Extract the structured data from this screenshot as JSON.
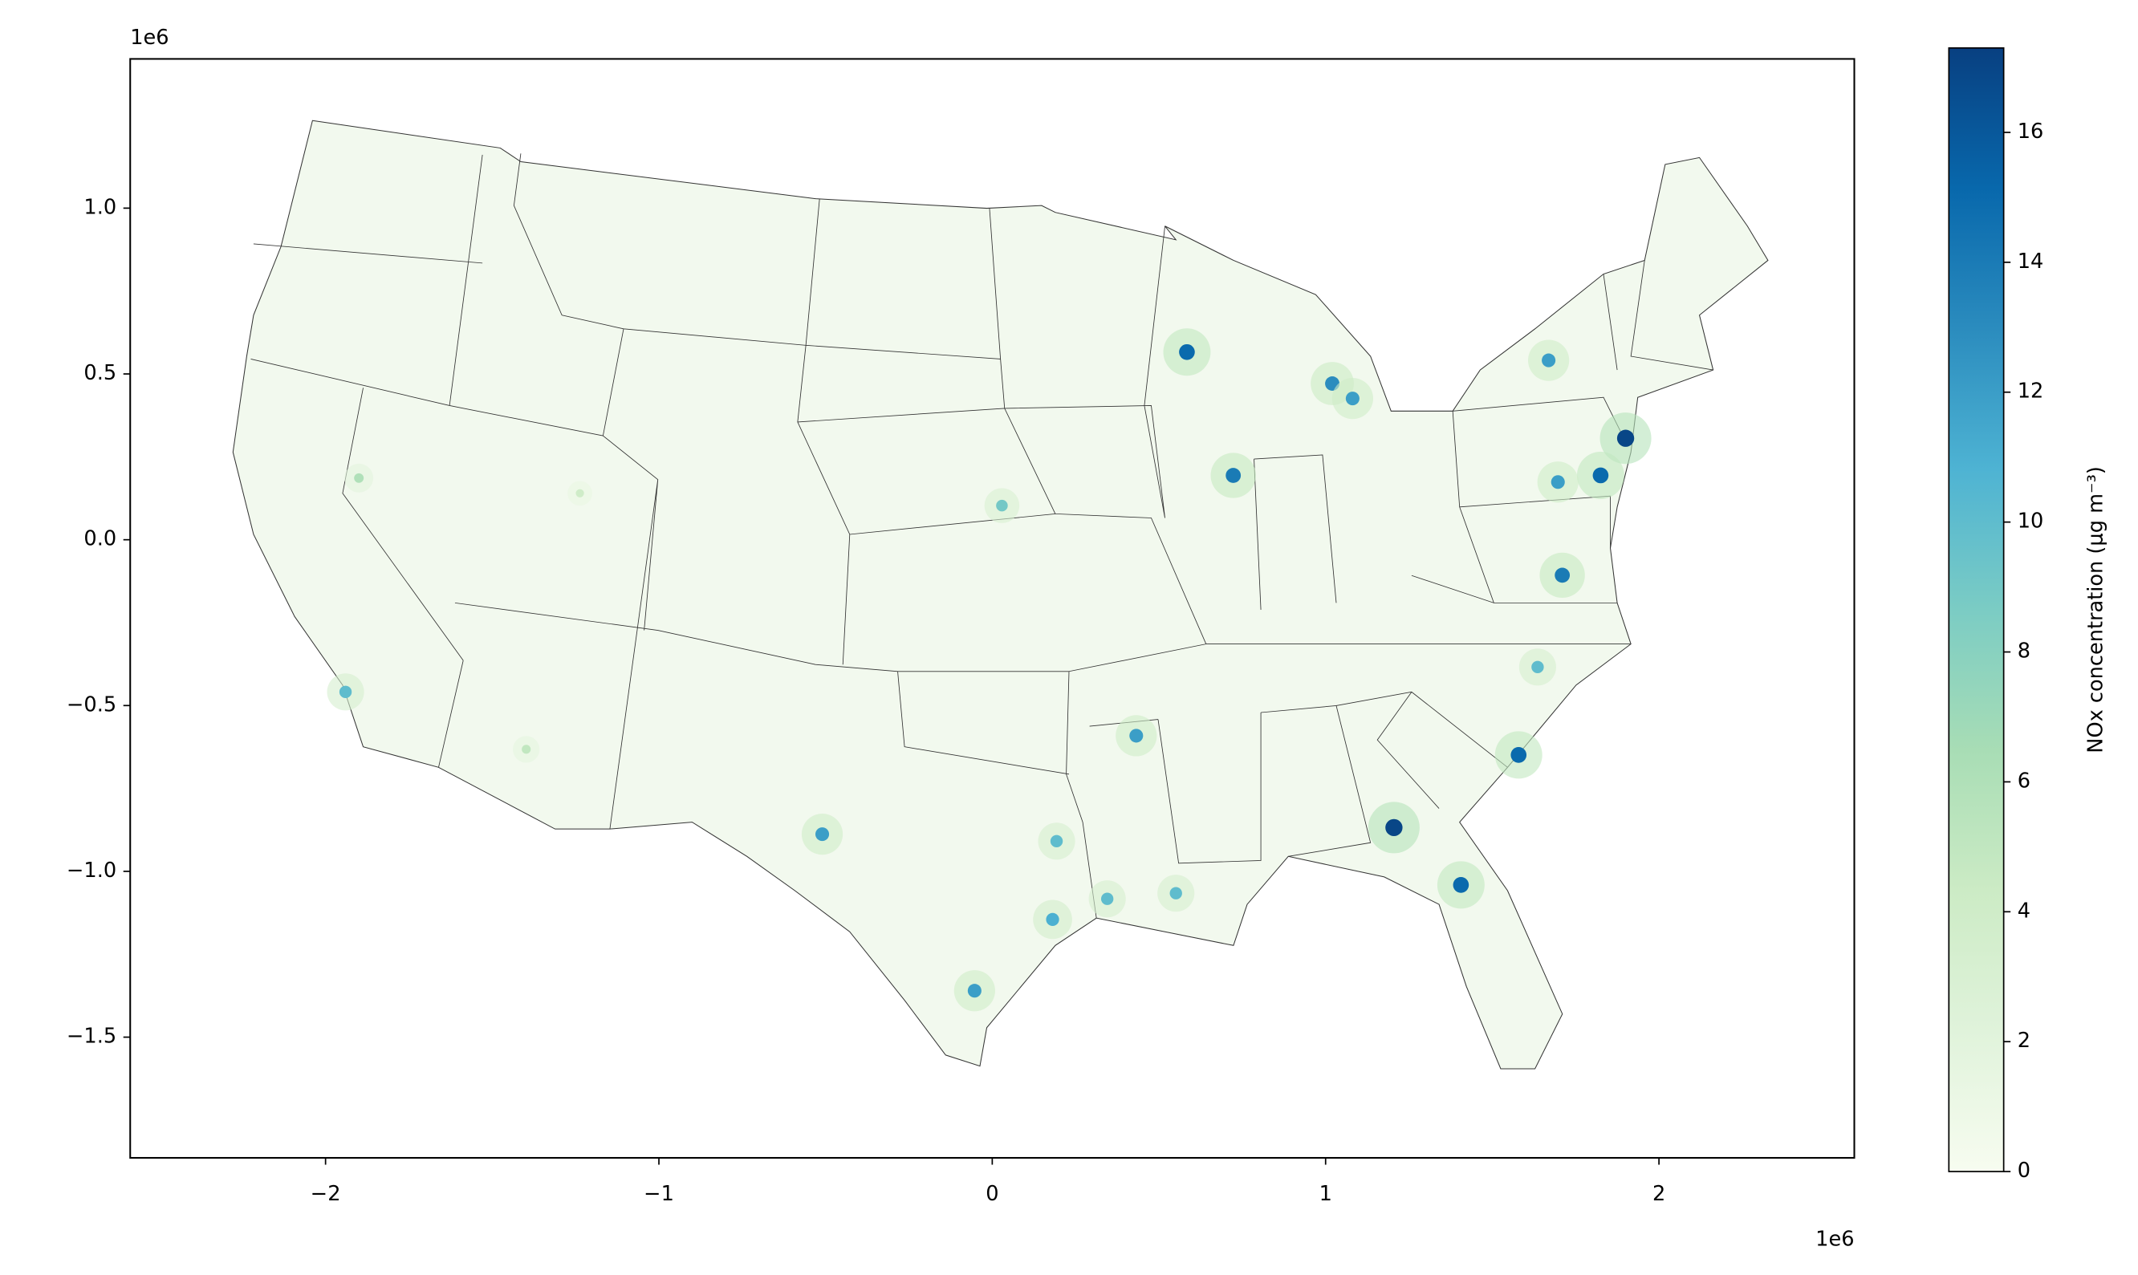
{
  "chart_data": {
    "type": "map",
    "x_offset_label": "1e6",
    "y_offset_label": "1e6",
    "xlim": [
      -2.586,
      2.586
    ],
    "xticks": [
      {
        "value": -2,
        "label": "−2"
      },
      {
        "value": -1,
        "label": "−1"
      },
      0,
      1,
      2
    ],
    "ylim": [
      -1.864,
      1.45
    ],
    "yticks": [
      {
        "value": 1,
        "label": "1.0"
      },
      0.5,
      {
        "value": 0,
        "label": "0.0"
      },
      {
        "value": -0.5,
        "label": "−0.5"
      },
      {
        "value": -1,
        "label": "−1.0"
      },
      {
        "value": -1.5,
        "label": "−1.5"
      }
    ],
    "x": [
      0.584,
      0.723,
      1.02,
      1.081,
      1.9,
      1.825,
      1.697,
      1.669,
      1.71,
      1.636,
      1.579,
      1.205,
      1.406,
      0.432,
      0.551,
      0.345,
      0.181,
      0.193,
      -0.053,
      -0.51,
      -1.94,
      0.029,
      -1.9,
      -1.398,
      -1.237
    ],
    "y": [
      0.566,
      0.194,
      0.471,
      0.426,
      0.306,
      0.194,
      0.174,
      0.541,
      -0.107,
      -0.384,
      -0.649,
      -0.868,
      -1.041,
      -0.591,
      -1.066,
      -1.083,
      -1.145,
      -0.909,
      -1.36,
      -0.888,
      -0.459,
      0.103,
      0.186,
      -0.632,
      0.14
    ],
    "values": [
      15,
      14,
      13,
      12,
      17,
      15,
      12,
      12,
      14,
      10,
      15,
      17,
      15,
      12,
      10,
      10,
      11,
      10,
      12,
      12,
      10,
      9,
      6,
      5,
      4
    ],
    "colorbar": {
      "label": "NOx concentration (μg m⁻³)",
      "lim": [
        0,
        17.3
      ],
      "ticks": [
        0,
        2,
        4,
        6,
        8,
        10,
        12,
        14,
        16
      ],
      "colors": [
        "#f7fcf0",
        "#e0f3db",
        "#ccebc5",
        "#a8ddb5",
        "#7bccc4",
        "#4eb3d3",
        "#2b8cbe",
        "#0868ac",
        "#084081"
      ]
    }
  }
}
